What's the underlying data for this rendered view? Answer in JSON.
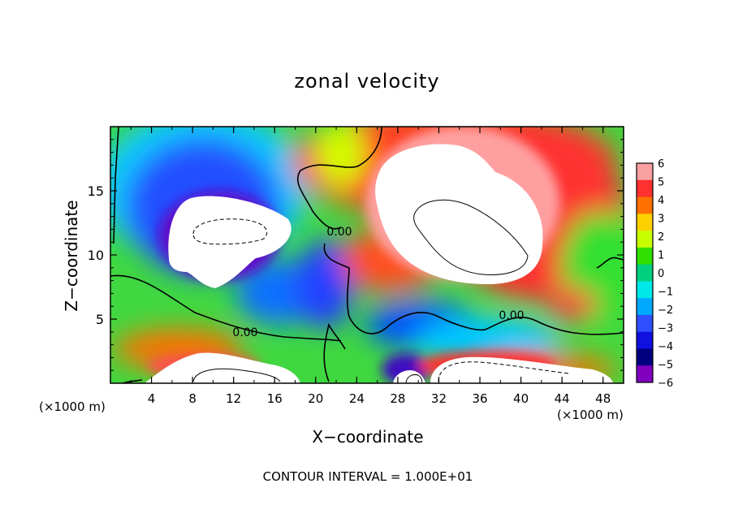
{
  "chart_data": {
    "type": "heatmap",
    "title": "zonal velocity",
    "xlabel": "X−coordinate",
    "ylabel": "Z−coordinate",
    "x_unit": "(×1000 m)",
    "y_unit": "(×1000 m)",
    "xlim": [
      0,
      50
    ],
    "ylim": [
      0,
      20
    ],
    "x_ticks": [
      4,
      8,
      12,
      16,
      20,
      24,
      28,
      32,
      36,
      40,
      44,
      48
    ],
    "y_ticks": [
      5,
      10,
      15
    ],
    "colorbar": {
      "ticks": [
        6,
        5,
        4,
        3,
        2,
        1,
        0,
        -1,
        -2,
        -3,
        -4,
        -5,
        -6
      ],
      "tick_labels": [
        "6",
        "5",
        "4",
        "3",
        "2",
        "1",
        "0",
        "−1",
        "−2",
        "−3",
        "−4",
        "−5",
        "−6"
      ],
      "colors": [
        "#f9a0a0",
        "#ff3030",
        "#ff7000",
        "#ffd000",
        "#c8ff00",
        "#30e000",
        "#00d080",
        "#00e8e8",
        "#00a8ff",
        "#3050ff",
        "#1010e0",
        "#000080",
        "#8000c0"
      ]
    },
    "contour_labels": [
      "0.00",
      "0.00",
      "0.00"
    ],
    "grid": false,
    "footnote": "CONTOUR INTERVAL = 1.000E+01"
  }
}
